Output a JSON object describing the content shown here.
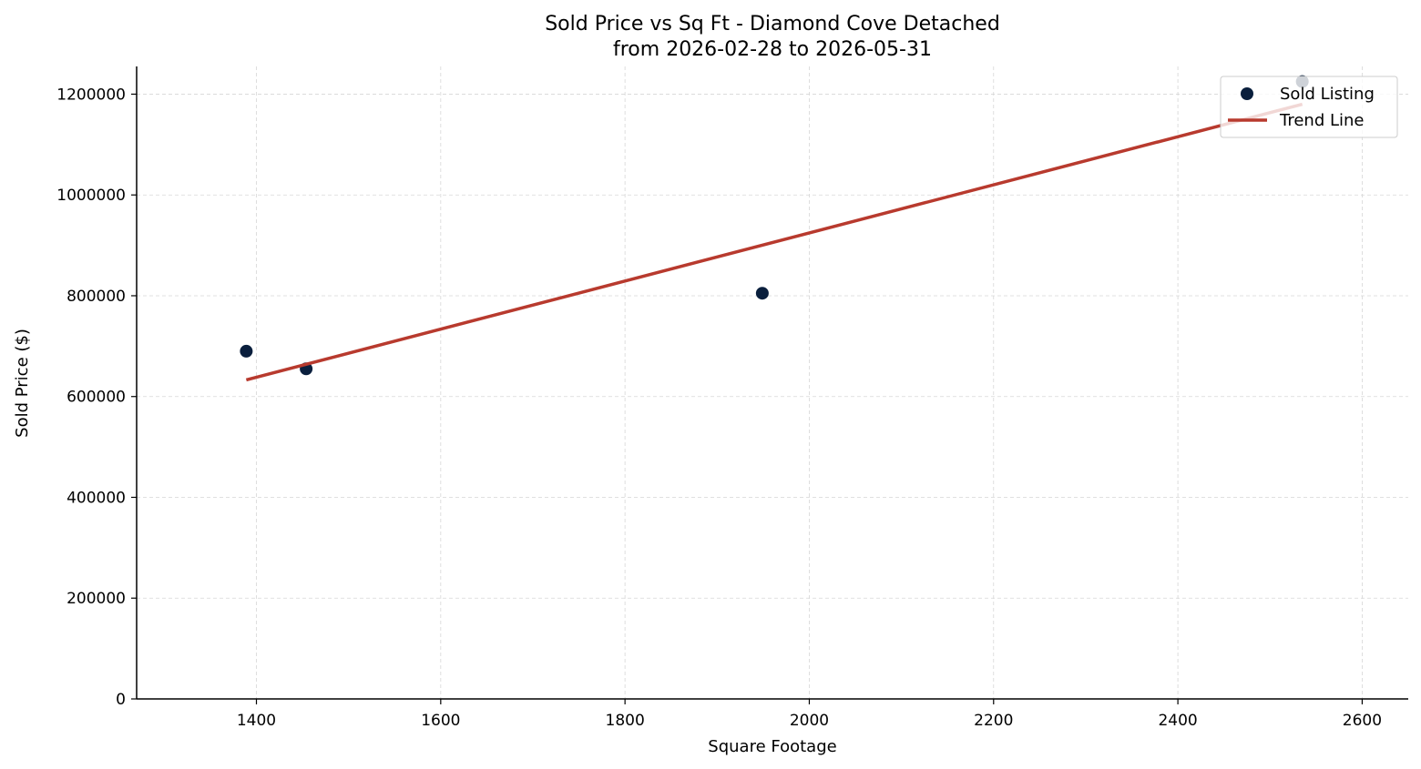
{
  "chart_data": {
    "type": "scatter",
    "title_line1": "Sold Price vs Sq Ft - Diamond Cove Detached",
    "title_line2": "from 2026-02-28 to 2026-05-31",
    "xlabel": "Square Footage",
    "ylabel": "Sold Price ($)",
    "xlim": [
      1270,
      2650
    ],
    "ylim": [
      0,
      1255000
    ],
    "xticks": [
      1400,
      1600,
      1800,
      2000,
      2200,
      2400,
      2600
    ],
    "yticks": [
      0,
      200000,
      400000,
      600000,
      800000,
      1000000,
      1200000
    ],
    "grid": true,
    "legend_position": "top-right",
    "series": [
      {
        "name": "Sold Listing",
        "kind": "scatter",
        "color": "#0a1f3d",
        "points": [
          {
            "x": 1389,
            "y": 690000
          },
          {
            "x": 1454,
            "y": 655000
          },
          {
            "x": 1949,
            "y": 805000
          },
          {
            "x": 2535,
            "y": 1225000
          }
        ]
      },
      {
        "name": "Trend Line",
        "kind": "line",
        "color": "#b83a2e",
        "points": [
          {
            "x": 1389,
            "y": 633000
          },
          {
            "x": 2535,
            "y": 1180000
          }
        ]
      }
    ]
  }
}
